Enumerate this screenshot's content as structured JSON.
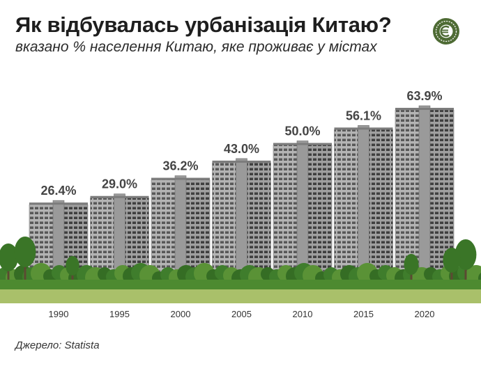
{
  "header": {
    "title": "Як відбувалась урбанізація Китаю?",
    "subtitle": "вказано % населення Китаю, яке проживає у містах"
  },
  "logo": {
    "icon": "brand-logo-icon",
    "color": "#4e6b34"
  },
  "source": "Джерело: Statista",
  "chart_data": {
    "type": "bar",
    "title": "Як відбувалась урбанізація Китаю?",
    "subtitle": "вказано % населення Китаю, яке проживає у містах",
    "categories": [
      "1990",
      "1995",
      "2000",
      "2005",
      "2010",
      "2015",
      "2020"
    ],
    "values": [
      26.4,
      29.0,
      36.2,
      43.0,
      50.0,
      56.1,
      63.9
    ],
    "value_labels": [
      "26.4%",
      "29.0%",
      "36.2%",
      "43.0%",
      "50.0%",
      "56.1%",
      "63.9%"
    ],
    "bar_style": "apartment-building",
    "ylim": [
      0,
      63.9
    ],
    "grid": false,
    "colors": {
      "building": "#8f8f8f",
      "trees": "#3f7d2c",
      "grass": "#a9c06a",
      "label": "#444444"
    }
  }
}
